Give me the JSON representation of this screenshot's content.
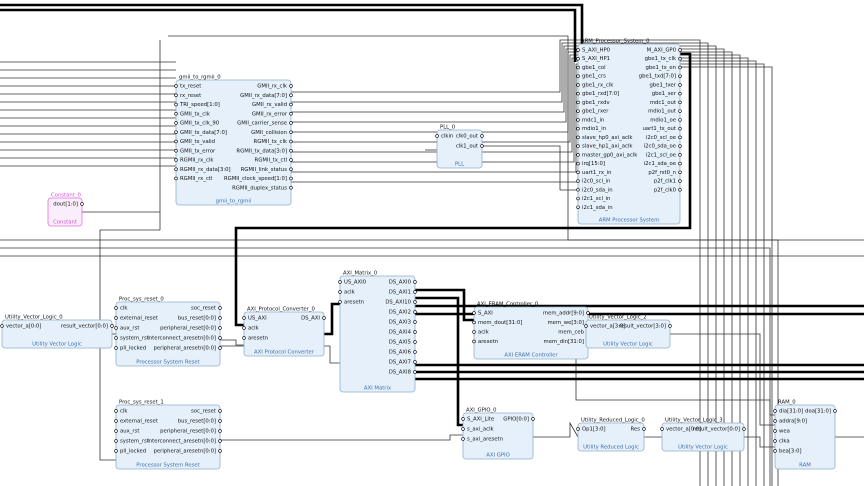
{
  "blocks": [
    {
      "name": "gmii_to_rgmii_0",
      "subtitle": "gmii_to_rgmii",
      "inputs": [
        "tx_reset",
        "rx_reset",
        "TRI_speed[1:0]",
        "GMII_tx_clk",
        "GMII_tx_clk_90",
        "GMII_tx_data[7:0]",
        "GMII_tx_valid",
        "GMII_tx_error",
        "RGMII_rx_clk",
        "RGMII_rx_data[3:0]",
        "RGMII_rx_ctl"
      ],
      "outputs": [
        "GMII_rx_clk",
        "GMII_rx_data[7:0]",
        "GMII_rx_valid",
        "GMII_rx_error",
        "GMII_carrier_sense",
        "GMII_collision",
        "RGMII_tx_clk",
        "RGMII_tx_data[3:0]",
        "RGMII_tx_ctl",
        "RGMII_link_status",
        "RGMII_clock_speed[1:0]",
        "RGMII_duplex_status"
      ]
    },
    {
      "name": "Constant_0",
      "subtitle": "Constant",
      "inputs": [],
      "outputs": [
        "dout[1:0]"
      ]
    },
    {
      "name": "PLL_0",
      "subtitle": "PLL",
      "inputs": [
        "clkin"
      ],
      "outputs": [
        "clk0_out",
        "clk1_out"
      ]
    },
    {
      "name": "ARM_Processor_System_0",
      "subtitle": "ARM Processor System",
      "inputs": [
        "S_AXI_HP0",
        "S_AXI_HP1",
        "gbe1_col",
        "gbe1_crs",
        "gbe1_rx_clk",
        "gbe1_rxd[7:0]",
        "gbe1_rxdv",
        "gbe1_rxer",
        "mdc1_in",
        "mdio1_in",
        "slave_hp0_axi_aclk",
        "slave_hp1_axi_aclk",
        "master_gp0_axi_aclk",
        "irq[15:0]",
        "uart1_rx_in",
        "i2c0_scl_in",
        "i2c0_sda_in",
        "i2c1_scl_in",
        "i2c1_sda_in"
      ],
      "outputs": [
        "M_AXI_GP0",
        "gbe1_tx_clk",
        "gbe1_tx_en",
        "gbe1_txd[7:0]",
        "gbe1_txer",
        "gbe1_ser",
        "mdc1_out",
        "mdio1_out",
        "mdio1_oe",
        "uart1_tx_out",
        "i2c0_scl_oe",
        "i2c0_sda_oe",
        "i2c1_scl_oe",
        "i2c1_sda_oe",
        "p2f_rst0_n",
        "p2f_clk1",
        "p2f_clk0"
      ]
    },
    {
      "name": "Utility_Vector_Logic_0",
      "subtitle": "Utility Vector Logic",
      "inputs": [
        "vector_a[0:0]"
      ],
      "outputs": [
        "result_vector[0:0]"
      ]
    },
    {
      "name": "Proc_sys_reset_0",
      "subtitle": "Processor System Reset",
      "inputs": [
        "clk",
        "external_reset",
        "aux_rst",
        "system_rst",
        "pll_locked"
      ],
      "outputs": [
        "soc_reset",
        "bus_reset[0:0]",
        "peripheral_reset[0:0]",
        "interconnect_aresetn[0:0]",
        "peripheral_aresetn[0:0]"
      ]
    },
    {
      "name": "Proc_sys_reset_1",
      "subtitle": "Processor System Reset",
      "inputs": [
        "clk",
        "external_reset",
        "aux_rst",
        "system_rst",
        "pll_locked"
      ],
      "outputs": [
        "soc_reset",
        "bus_reset[0:0]",
        "peripheral_reset[0:0]",
        "interconnect_aresetn[0:0]",
        "peripheral_aresetn[0:0]"
      ]
    },
    {
      "name": "AXI_Protocol_Converter_0",
      "subtitle": "AXI Protocol Converter",
      "inputs": [
        "US_AXI",
        "aclk",
        "aresetn"
      ],
      "outputs": [
        "DS_AXI"
      ]
    },
    {
      "name": "AXI_Matrix_0",
      "subtitle": "AXI Matrix",
      "inputs": [
        "US_AXI0",
        "aclk",
        "aresetn"
      ],
      "outputs": [
        "DS_AXI0",
        "DS_AXI1",
        "DS_AXI10",
        "DS_AXI2",
        "DS_AXI3",
        "DS_AXI4",
        "DS_AXI5",
        "DS_AXI6",
        "DS_AXI7",
        "DS_AXI8"
      ]
    },
    {
      "name": "AXI_ERAM_Controller_0",
      "subtitle": "AXI ERAM Controller",
      "inputs": [
        "S_AXI",
        "mem_dout[31:0]",
        "aclk",
        "aresetn"
      ],
      "outputs": [
        "mem_addr[9:0]",
        "mem_we[3:0]",
        "mem_ceb",
        "mem_din[31:0]"
      ]
    },
    {
      "name": "Utility_Vector_Logic_2",
      "subtitle": "Utility Vector Logic",
      "inputs": [
        "vector_a[3:0]"
      ],
      "outputs": [
        "result_vector[3:0]"
      ]
    },
    {
      "name": "AXI_GPIO_0",
      "subtitle": "AXI GPIO",
      "inputs": [
        "S_AXI_Lite",
        "s_axi_aclk",
        "s_axi_aresetn"
      ],
      "outputs": [
        "GPIO[0:0]"
      ]
    },
    {
      "name": "Utility_Reduced_Logic_0",
      "subtitle": "Utility Reduced Logic",
      "inputs": [
        "Op1[3:0]"
      ],
      "outputs": [
        "Res"
      ]
    },
    {
      "name": "Utility_Vector_Logic_3",
      "subtitle": "Utility Vector Logic",
      "inputs": [
        "vector_a[0:0]"
      ],
      "outputs": [
        "result_vector[0:0]"
      ]
    },
    {
      "name": "RAM_0",
      "subtitle": "RAM",
      "inputs": [
        "dia[31:0]",
        "addra[9:0]",
        "wea",
        "clka",
        "bea[3:0]"
      ],
      "outputs": [
        "doa[31:0]"
      ]
    }
  ]
}
